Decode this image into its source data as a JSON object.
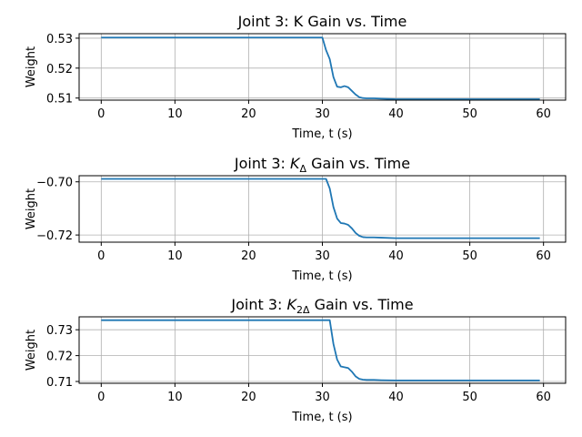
{
  "chart_data": [
    {
      "type": "line",
      "title": "Joint 3: K Gain vs. Time",
      "title_parts": [
        {
          "t": "Joint 3: K Gain vs. Time"
        }
      ],
      "xlabel": "Time, t (s)",
      "ylabel": "Weight",
      "xlim": [
        -3,
        63
      ],
      "ylim": [
        0.5093,
        0.5315
      ],
      "xticks": [
        0,
        10,
        20,
        30,
        40,
        50,
        60
      ],
      "yticks": [
        0.51,
        0.52,
        0.53
      ],
      "ytick_labels": [
        "0.51",
        "0.52",
        "0.53"
      ],
      "grid": true,
      "color": "#1f77b4",
      "x": [
        0,
        30,
        30.5,
        31,
        31.5,
        32,
        32.5,
        33,
        33.5,
        34,
        34.5,
        35,
        35.5,
        36,
        37,
        38,
        40,
        45,
        50,
        59.5
      ],
      "y": [
        0.5302,
        0.5302,
        0.526,
        0.523,
        0.517,
        0.5138,
        0.5136,
        0.514,
        0.5136,
        0.5124,
        0.5112,
        0.5103,
        0.51,
        0.5099,
        0.5099,
        0.5098,
        0.5096,
        0.5096,
        0.5096,
        0.5096
      ]
    },
    {
      "type": "line",
      "title": "Joint 3: K_Δ Gain vs. Time",
      "title_parts": [
        {
          "t": "Joint 3: "
        },
        {
          "t": "K",
          "i": true
        },
        {
          "t": "Δ",
          "sub": true
        },
        {
          "t": " Gain vs. Time"
        }
      ],
      "xlabel": "Time, t (s)",
      "ylabel": "Weight",
      "xlim": [
        -3,
        63
      ],
      "ylim": [
        -0.7227,
        -0.6977
      ],
      "xticks": [
        0,
        10,
        20,
        30,
        40,
        50,
        60
      ],
      "yticks": [
        -0.72,
        -0.7
      ],
      "ytick_labels": [
        "−0.72",
        "−0.70"
      ],
      "grid": true,
      "color": "#1f77b4",
      "x": [
        0,
        30.5,
        31,
        31.5,
        32,
        32.5,
        33,
        33.5,
        34,
        34.5,
        35,
        35.5,
        36,
        37,
        38,
        40,
        45,
        50,
        59.5
      ],
      "y": [
        -0.6989,
        -0.6989,
        -0.7025,
        -0.7095,
        -0.7138,
        -0.7155,
        -0.7157,
        -0.7162,
        -0.7175,
        -0.7192,
        -0.7203,
        -0.7208,
        -0.7209,
        -0.7209,
        -0.721,
        -0.7212,
        -0.7212,
        -0.7212,
        -0.7212
      ]
    },
    {
      "type": "line",
      "title": "Joint 3: K_2Δ Gain vs. Time",
      "title_parts": [
        {
          "t": "Joint 3: "
        },
        {
          "t": "K",
          "i": true
        },
        {
          "t": "2Δ",
          "sub": true
        },
        {
          "t": " Gain vs. Time"
        }
      ],
      "xlabel": "Time, t (s)",
      "ylabel": "Weight",
      "xlim": [
        -3,
        63
      ],
      "ylim": [
        0.7093,
        0.735
      ],
      "xticks": [
        0,
        10,
        20,
        30,
        40,
        50,
        60
      ],
      "yticks": [
        0.71,
        0.72,
        0.73
      ],
      "ytick_labels": [
        "0.71",
        "0.72",
        "0.73"
      ],
      "grid": true,
      "color": "#1f77b4",
      "x": [
        0,
        31,
        31.5,
        32,
        32.5,
        33,
        33.5,
        34,
        34.5,
        35,
        35.5,
        36,
        37,
        38,
        40,
        45,
        50,
        59.5
      ],
      "y": [
        0.7337,
        0.7337,
        0.7245,
        0.7185,
        0.7158,
        0.7155,
        0.7152,
        0.7138,
        0.712,
        0.711,
        0.7107,
        0.7106,
        0.7106,
        0.7105,
        0.7104,
        0.7104,
        0.7104,
        0.7104
      ]
    }
  ]
}
